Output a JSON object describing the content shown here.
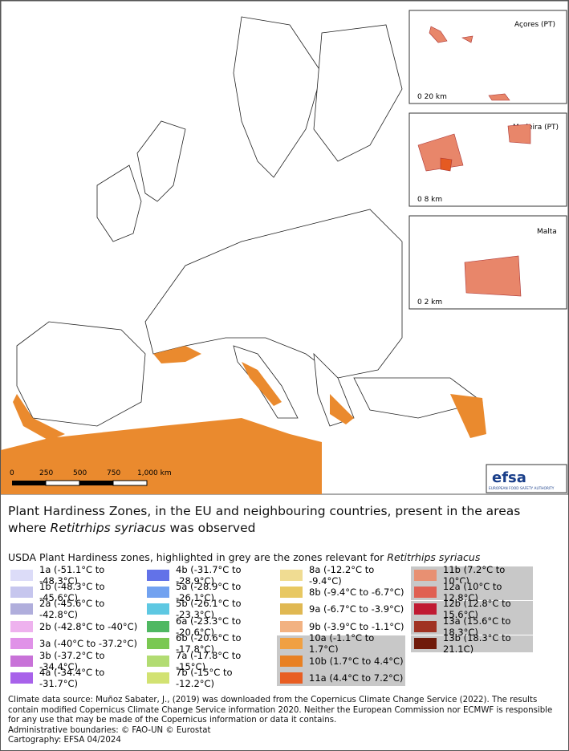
{
  "map": {
    "insets": [
      {
        "title": "Açores (PT)",
        "scale": "0 20 km"
      },
      {
        "title": "Madeira (PT)",
        "scale": "0 8 km"
      },
      {
        "title": "Malta",
        "scale": "0 2 km"
      }
    ],
    "scale_bar": [
      "0",
      "250",
      "500",
      "750",
      "1,000 km"
    ],
    "logo": {
      "name": "efsa",
      "subtitle": "EUROPEAN FOOD SAFETY AUTHORITY"
    }
  },
  "caption": {
    "title": [
      "Plant Hardiness Zones, in the EU and neighbouring countries, present in the areas where ",
      "Retitrhips syriacus",
      " was observed"
    ]
  },
  "legend": {
    "heading": [
      "USDA Plant Hardiness zones, highlighted in grey are the zones relevant for ",
      "Retitrhips syriacus"
    ],
    "columns": [
      [
        {
          "label": "1a (-51.1°C to -48.3°C)",
          "color": "#dcdcf8",
          "highlighted": false
        },
        {
          "label": "1b (-48.3°C to -45.6°C)",
          "color": "#c6c6ee",
          "highlighted": false
        },
        {
          "label": "2a (-45.6°C to -42.8°C)",
          "color": "#b0aedc",
          "highlighted": false
        },
        {
          "label": "2b (-42.8°C to -40°C)",
          "color": "#eeb2ee",
          "highlighted": false
        },
        {
          "label": "3a (-40°C to -37.2°C)",
          "color": "#e092e8",
          "highlighted": false
        },
        {
          "label": "3b (-37.2°C to -34.4°C)",
          "color": "#c872d8",
          "highlighted": false
        },
        {
          "label": "4a (-34.4°C to -31.7°C)",
          "color": "#a862ea",
          "highlighted": false
        }
      ],
      [
        {
          "label": "4b (-31.7°C to -28.9°C)",
          "color": "#6272e8",
          "highlighted": false
        },
        {
          "label": "5a (-28.9°C to -26.1°C)",
          "color": "#72a2f0",
          "highlighted": false
        },
        {
          "label": "5b (-26.1°C to -23.3°C)",
          "color": "#5ec8e2",
          "highlighted": false
        },
        {
          "label": "6a (-23.3°C to -20.6°C)",
          "color": "#4fb862",
          "highlighted": false
        },
        {
          "label": "6b (-20.6°C to -17.8°C)",
          "color": "#7ac852",
          "highlighted": false
        },
        {
          "label": "7a (-17.8°C to -15°C)",
          "color": "#b2dc72",
          "highlighted": false
        },
        {
          "label": "7b (-15°C to -12.2°C)",
          "color": "#d2e272",
          "highlighted": false
        }
      ],
      [
        {
          "label": "8a (-12.2°C to -9.4°C)",
          "color": "#f0dc92",
          "highlighted": false
        },
        {
          "label": "8b (-9.4°C to -6.7°C)",
          "color": "#e8c862",
          "highlighted": false
        },
        {
          "label": "9a (-6.7°C to -3.9°C)",
          "color": "#e0b852",
          "highlighted": false
        },
        {
          "label": "9b (-3.9°C to -1.1°C)",
          "color": "#f2b282",
          "highlighted": false
        },
        {
          "label": "10a (-1.1°C to 1.7°C)",
          "color": "#f0a042",
          "highlighted": true
        },
        {
          "label": "10b (1.7°C to 4.4°C)",
          "color": "#e88022",
          "highlighted": true
        },
        {
          "label": "11a (4.4°C to 7.2°C)",
          "color": "#e85e22",
          "highlighted": true
        }
      ],
      [
        {
          "label": "11b (7.2°C to 10°C)",
          "color": "#e89072",
          "highlighted": true
        },
        {
          "label": "12a (10°C to 12.8°C)",
          "color": "#e06052",
          "highlighted": true
        },
        {
          "label": "12b (12.8°C to 15.6°C)",
          "color": "#c01a32",
          "highlighted": true
        },
        {
          "label": "13a (15.6°C to 18.3°C)",
          "color": "#a03222",
          "highlighted": true
        },
        {
          "label": "13b (18.3°C to 21.1C)",
          "color": "#701a0a",
          "highlighted": true
        }
      ]
    ]
  },
  "footer": [
    "Climate data source: Muñoz Sabater, J., (2019) was downloaded from the Copernicus Climate Change Service (2022). The results contain modified Copernicus Climate Change Service information 2020. Neither the European Commission nor ECMWF is responsible for any use that may be made of the Copernicus information or data it contains.",
    "Administrative boundaries: © FAO-UN © Eurostat",
    "Cartography: EFSA 04/2024"
  ]
}
